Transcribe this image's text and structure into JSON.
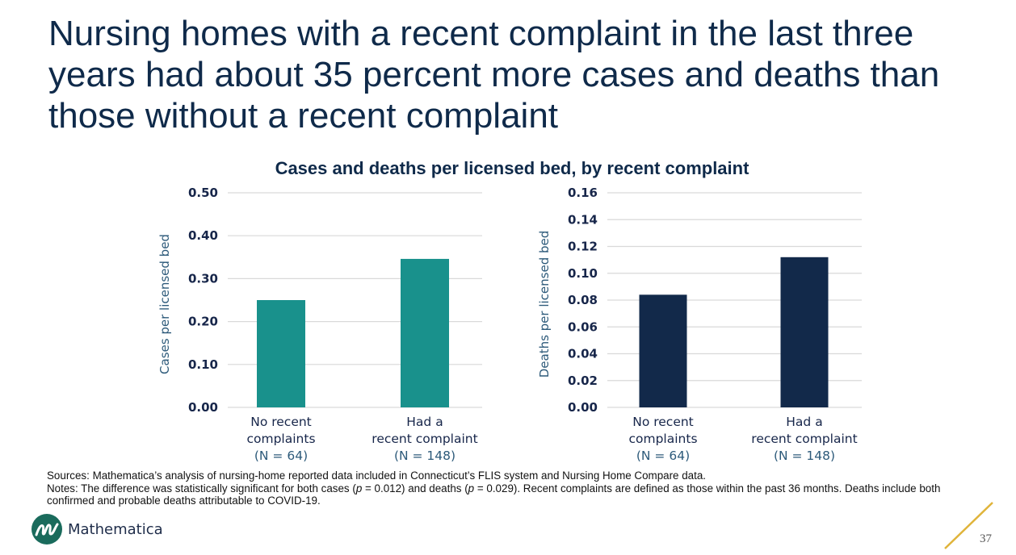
{
  "slide": {
    "title": "Nursing homes with a recent complaint in the last three years had about 35 percent more cases and deaths than those without a recent complaint",
    "page_number": "37",
    "brand": "Mathematica",
    "logo_icon": "mathematica-m-logo-icon",
    "accent_color": "#e0b43a"
  },
  "notes": {
    "sources": "Sources: Mathematica’s analysis of nursing-home reported data included in Connecticut’s FLIS system and Nursing Home Compare data.",
    "notes_prefix": "Notes: The difference was statistically significant for both cases (",
    "p_label": "p",
    "cases_p": " = 0.012) and deaths (",
    "deaths_p": " = 0.029). Recent complaints are defined as those within the past 36 months. Deaths include both confirmed and probable deaths attributable to COVID-19."
  },
  "chart_data": [
    {
      "type": "bar",
      "title": "Cases and deaths per licensed bed, by recent complaint",
      "categories": [
        "No recent complaints (N = 64)",
        "Had a recent complaint (N = 148)"
      ],
      "category_lines": [
        [
          "No recent",
          "complaints",
          "(N = 64)"
        ],
        [
          "Had a",
          "recent complaint",
          "(N = 148)"
        ]
      ],
      "values": [
        0.25,
        0.346
      ],
      "xlabel": "",
      "ylabel": "Cases per licensed bed",
      "ylim": [
        0,
        0.5
      ],
      "yticks": [
        "0.00",
        "0.10",
        "0.20",
        "0.30",
        "0.40",
        "0.50"
      ],
      "ytick_values": [
        0,
        0.1,
        0.2,
        0.3,
        0.4,
        0.5
      ],
      "grid": true,
      "color": "#19918c"
    },
    {
      "type": "bar",
      "title": "Cases and deaths per licensed bed, by recent complaint",
      "categories": [
        "No recent complaints (N = 64)",
        "Had a recent complaint (N = 148)"
      ],
      "category_lines": [
        [
          "No recent",
          "complaints",
          "(N = 64)"
        ],
        [
          "Had a",
          "recent complaint",
          "(N = 148)"
        ]
      ],
      "values": [
        0.084,
        0.112
      ],
      "xlabel": "",
      "ylabel": "Deaths per licensed bed",
      "ylim": [
        0,
        0.16
      ],
      "yticks": [
        "0.00",
        "0.02",
        "0.04",
        "0.06",
        "0.08",
        "0.10",
        "0.12",
        "0.14",
        "0.16"
      ],
      "ytick_values": [
        0,
        0.02,
        0.04,
        0.06,
        0.08,
        0.1,
        0.12,
        0.14,
        0.16
      ],
      "grid": true,
      "color": "#12294a"
    }
  ]
}
